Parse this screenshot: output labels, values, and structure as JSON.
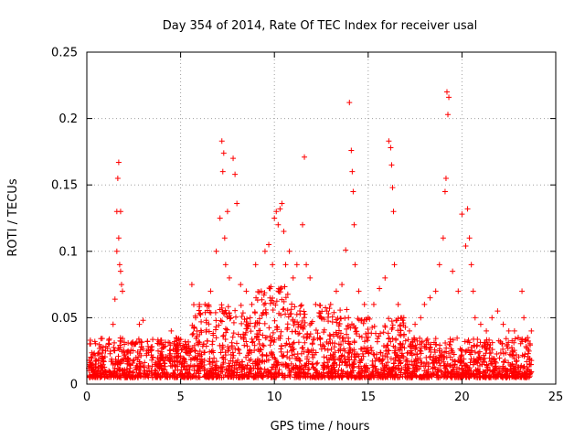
{
  "chart_data": {
    "type": "scatter",
    "title": "Day 354 of 2014, Rate Of TEC Index for receiver usal",
    "xlabel": "GPS time / hours",
    "ylabel": "ROTI / TECUs",
    "xlim": [
      0,
      25
    ],
    "ylim": [
      0,
      0.25
    ],
    "xticks": [
      0,
      5,
      10,
      15,
      20,
      25
    ],
    "yticks": [
      0,
      0.05,
      0.1,
      0.15,
      0.2,
      0.25
    ],
    "xtick_labels": [
      "0",
      "5",
      "10",
      "15",
      "20",
      "25"
    ],
    "ytick_labels": [
      "0",
      "0.05",
      "0.1",
      "0.15",
      "0.2",
      "0.25"
    ],
    "grid": true,
    "marker": "+",
    "color": "#ff0000",
    "series": [
      {
        "name": "ROTI",
        "x": [
          0.1,
          0.3,
          0.5,
          0.8,
          1.0,
          1.2,
          1.4,
          1.5,
          1.6,
          1.6,
          1.65,
          1.7,
          1.7,
          1.75,
          1.8,
          1.8,
          1.85,
          1.9,
          2.0,
          2.2,
          2.5,
          2.8,
          3.0,
          3.2,
          3.5,
          3.8,
          4.0,
          4.3,
          4.5,
          4.8,
          5.0,
          5.3,
          5.6,
          5.8,
          6.0,
          6.3,
          6.6,
          6.9,
          7.1,
          7.2,
          7.25,
          7.3,
          7.35,
          7.4,
          7.5,
          7.6,
          7.8,
          7.9,
          8.0,
          8.2,
          8.5,
          8.8,
          9.0,
          9.3,
          9.5,
          9.7,
          9.9,
          10.0,
          10.1,
          10.2,
          10.3,
          10.4,
          10.5,
          10.6,
          10.8,
          11.0,
          11.2,
          11.5,
          11.6,
          11.7,
          11.9,
          12.2,
          12.5,
          12.8,
          13.0,
          13.3,
          13.6,
          13.8,
          14.0,
          14.1,
          14.15,
          14.2,
          14.25,
          14.3,
          14.5,
          14.8,
          15.0,
          15.3,
          15.6,
          15.9,
          16.1,
          16.2,
          16.25,
          16.3,
          16.35,
          16.4,
          16.6,
          16.9,
          17.2,
          17.5,
          17.8,
          18.0,
          18.3,
          18.6,
          18.8,
          19.0,
          19.1,
          19.15,
          19.2,
          19.25,
          19.3,
          19.5,
          19.8,
          20.0,
          20.2,
          20.3,
          20.4,
          20.5,
          20.6,
          20.7,
          21.0,
          21.3,
          21.6,
          21.9,
          22.2,
          22.5,
          22.8,
          23.0,
          23.2,
          23.3,
          23.5,
          23.7
        ],
        "y": [
          0.012,
          0.015,
          0.018,
          0.02,
          0.025,
          0.03,
          0.045,
          0.064,
          0.1,
          0.13,
          0.155,
          0.167,
          0.11,
          0.09,
          0.085,
          0.13,
          0.075,
          0.07,
          0.03,
          0.025,
          0.03,
          0.045,
          0.048,
          0.025,
          0.02,
          0.025,
          0.03,
          0.02,
          0.04,
          0.025,
          0.02,
          0.03,
          0.075,
          0.05,
          0.06,
          0.06,
          0.07,
          0.1,
          0.125,
          0.183,
          0.16,
          0.174,
          0.11,
          0.09,
          0.13,
          0.08,
          0.17,
          0.158,
          0.136,
          0.075,
          0.07,
          0.06,
          0.09,
          0.07,
          0.1,
          0.105,
          0.09,
          0.125,
          0.13,
          0.12,
          0.132,
          0.136,
          0.115,
          0.09,
          0.1,
          0.08,
          0.09,
          0.12,
          0.171,
          0.09,
          0.08,
          0.06,
          0.05,
          0.055,
          0.06,
          0.07,
          0.075,
          0.101,
          0.212,
          0.176,
          0.16,
          0.145,
          0.12,
          0.09,
          0.07,
          0.06,
          0.05,
          0.06,
          0.072,
          0.08,
          0.183,
          0.178,
          0.165,
          0.148,
          0.13,
          0.09,
          0.06,
          0.05,
          0.04,
          0.045,
          0.05,
          0.06,
          0.065,
          0.07,
          0.09,
          0.11,
          0.145,
          0.155,
          0.22,
          0.203,
          0.216,
          0.085,
          0.07,
          0.128,
          0.104,
          0.132,
          0.11,
          0.09,
          0.07,
          0.05,
          0.045,
          0.04,
          0.05,
          0.055,
          0.045,
          0.04,
          0.04,
          0.035,
          0.07,
          0.05,
          0.035,
          0.04
        ]
      }
    ]
  }
}
